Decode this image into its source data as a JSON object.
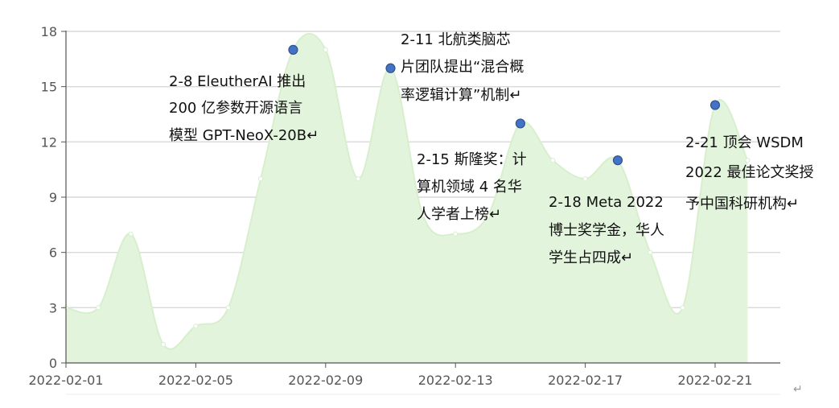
{
  "chart_data": {
    "type": "area",
    "x": [
      "2022-02-01",
      "2022-02-02",
      "2022-02-03",
      "2022-02-04",
      "2022-02-05",
      "2022-02-06",
      "2022-02-07",
      "2022-02-08",
      "2022-02-09",
      "2022-02-10",
      "2022-02-11",
      "2022-02-12",
      "2022-02-13",
      "2022-02-14",
      "2022-02-15",
      "2022-02-16",
      "2022-02-17",
      "2022-02-18",
      "2022-02-19",
      "2022-02-20",
      "2022-02-21",
      "2022-02-22"
    ],
    "xticks": [
      "2022-02-01",
      "2022-02-05",
      "2022-02-09",
      "2022-02-13",
      "2022-02-17",
      "2022-02-21"
    ],
    "values": [
      3,
      3,
      7,
      1,
      2,
      3,
      10,
      17,
      17,
      10,
      16,
      8,
      7,
      8,
      13,
      11,
      10,
      11,
      6,
      3,
      14,
      11
    ],
    "highlighted_points": [
      {
        "x": "2022-02-08",
        "y": 17
      },
      {
        "x": "2022-02-11",
        "y": 16
      },
      {
        "x": "2022-02-15",
        "y": 13
      },
      {
        "x": "2022-02-18",
        "y": 11
      },
      {
        "x": "2022-02-21",
        "y": 14
      }
    ],
    "ylim": [
      0,
      18
    ],
    "yticks": [
      0,
      3,
      6,
      9,
      12,
      15,
      18
    ],
    "grid": true,
    "title": "",
    "xlabel": "",
    "ylabel": "",
    "colors": {
      "fill": "#e3f4dd",
      "line": "#d7efcd",
      "marker": "#4472c4",
      "marker_edge": "#2f528f",
      "grid": "#d9d9d9",
      "axis": "#555555"
    },
    "annotations": [
      {
        "lines": [
          "2-8 EleutherAI 推出",
          "200 亿参数开源语言",
          "模型 GPT-NeoX-20B↵"
        ]
      },
      {
        "lines": [
          "2-11 北航类脑芯",
          "片团队提出“混合概",
          "率逻辑计算”机制↵"
        ]
      },
      {
        "lines": [
          "2-15 斯隆奖：计",
          "算机领域 4 名华",
          "人学者上榜↵"
        ]
      },
      {
        "lines": [
          "2-18 Meta 2022",
          "博士奖学金，华人",
          "学生占四成↵"
        ]
      },
      {
        "lines": [
          "2-21 顶会 WSDM",
          "2022 最佳论文奖授",
          "予中国科研机构↵"
        ]
      }
    ],
    "paragraph_mark": "↵"
  }
}
